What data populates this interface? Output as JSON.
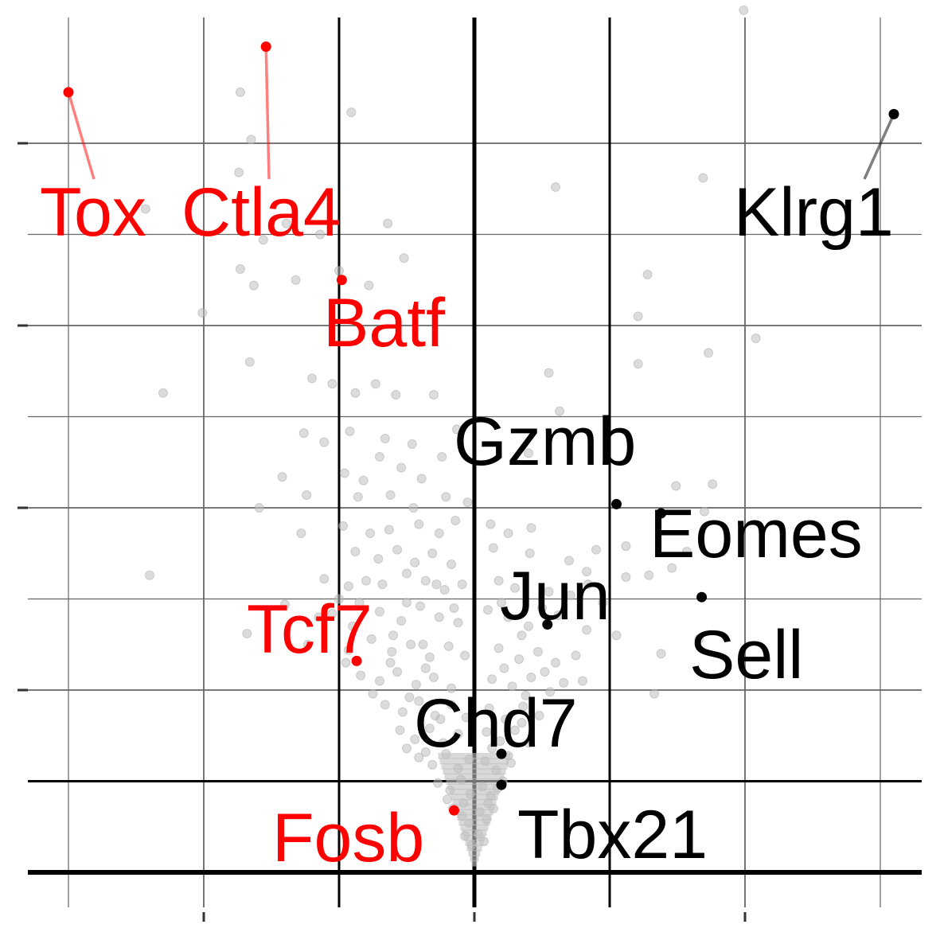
{
  "chart_data": {
    "type": "scatter",
    "title": "",
    "xlabel": "",
    "ylabel": "",
    "xlim": [
      -3.0,
      3.3
    ],
    "ylim": [
      -0.1,
      4.7
    ],
    "grid": true,
    "legend": "none",
    "x_ticks": [
      -2,
      0,
      2
    ],
    "y_ticks": [
      1,
      2,
      3,
      4
    ],
    "threshold_lines": {
      "x": [
        -1,
        1
      ],
      "y": 0.5
    },
    "colors": {
      "background_points": "#bfbfbf",
      "down": "#ff0000",
      "up": "#000000",
      "grid": "#666666",
      "axis": "#000000"
    },
    "highlighted": [
      {
        "gene": "Tox",
        "group": "down",
        "x": -3.0,
        "y": 4.28
      },
      {
        "gene": "Ctla4",
        "group": "down",
        "x": -1.54,
        "y": 4.53
      },
      {
        "gene": "Batf",
        "group": "down",
        "x": -0.98,
        "y": 3.25
      },
      {
        "gene": "Tcf7",
        "group": "down",
        "x": -0.87,
        "y": 1.16
      },
      {
        "gene": "Fosb",
        "group": "down",
        "x": -0.15,
        "y": 0.34
      },
      {
        "gene": "Klrg1",
        "group": "up",
        "x": 3.1,
        "y": 4.16
      },
      {
        "gene": "Gzmb",
        "group": "up",
        "x": 1.05,
        "y": 2.02
      },
      {
        "gene": "Eomes",
        "group": "up",
        "x": 1.38,
        "y": 1.97
      },
      {
        "gene": "Sell",
        "group": "up",
        "x": 1.68,
        "y": 1.51
      },
      {
        "gene": "Jun",
        "group": "up",
        "x": 0.54,
        "y": 1.36
      },
      {
        "gene": "Chd7",
        "group": "up",
        "x": 0.2,
        "y": 0.65
      },
      {
        "gene": "Tbx21",
        "group": "up",
        "x": 0.2,
        "y": 0.48
      }
    ],
    "background_points": [
      [
        1.99,
        4.73
      ],
      [
        -1.73,
        4.28
      ],
      [
        -0.91,
        4.17
      ],
      [
        -1.65,
        4.02
      ],
      [
        -1.74,
        3.84
      ],
      [
        1.69,
        3.81
      ],
      [
        0.6,
        3.76
      ],
      [
        -2.43,
        3.64
      ],
      [
        -1.39,
        3.56
      ],
      [
        -1.14,
        3.5
      ],
      [
        -1.56,
        3.47
      ],
      [
        -0.64,
        3.56
      ],
      [
        -0.52,
        3.37
      ],
      [
        -1.73,
        3.31
      ],
      [
        -1.63,
        3.22
      ],
      [
        -1.32,
        3.25
      ],
      [
        -1.0,
        3.3
      ],
      [
        -0.78,
        3.22
      ],
      [
        1.28,
        3.28
      ],
      [
        -2.01,
        3.07
      ],
      [
        1.21,
        3.05
      ],
      [
        1.73,
        2.85
      ],
      [
        2.08,
        2.93
      ],
      [
        -1.66,
        2.8
      ],
      [
        1.21,
        2.79
      ],
      [
        -2.3,
        2.63
      ],
      [
        -1.2,
        2.71
      ],
      [
        -1.05,
        2.68
      ],
      [
        -0.88,
        2.63
      ],
      [
        -0.73,
        2.68
      ],
      [
        -0.58,
        2.62
      ],
      [
        0.55,
        2.74
      ],
      [
        -0.3,
        2.62
      ],
      [
        0.63,
        2.53
      ],
      [
        -1.26,
        2.41
      ],
      [
        -1.11,
        2.36
      ],
      [
        -0.92,
        2.42
      ],
      [
        -0.66,
        2.38
      ],
      [
        -0.46,
        2.35
      ],
      [
        -0.13,
        2.43
      ],
      [
        -0.96,
        2.19
      ],
      [
        -0.82,
        2.15
      ],
      [
        -0.7,
        2.28
      ],
      [
        -0.54,
        2.22
      ],
      [
        -0.39,
        2.16
      ],
      [
        -0.24,
        2.28
      ],
      [
        0.4,
        2.3
      ],
      [
        1.49,
        2.12
      ],
      [
        1.76,
        2.13
      ],
      [
        1.7,
        1.98
      ],
      [
        -1.42,
        2.17
      ],
      [
        -1.24,
        2.07
      ],
      [
        -0.86,
        2.06
      ],
      [
        -0.62,
        2.07
      ],
      [
        -0.45,
        2.0
      ],
      [
        -0.21,
        2.06
      ],
      [
        -0.05,
        2.03
      ],
      [
        -1.59,
        2.0
      ],
      [
        -1.28,
        1.86
      ],
      [
        -0.97,
        1.9
      ],
      [
        -0.77,
        1.86
      ],
      [
        -0.63,
        1.88
      ],
      [
        -0.41,
        1.91
      ],
      [
        -0.26,
        1.86
      ],
      [
        -0.14,
        1.93
      ],
      [
        0.12,
        1.91
      ],
      [
        0.25,
        1.86
      ],
      [
        0.42,
        1.89
      ],
      [
        -0.88,
        1.76
      ],
      [
        -0.71,
        1.72
      ],
      [
        -0.57,
        1.77
      ],
      [
        -0.44,
        1.7
      ],
      [
        -0.31,
        1.75
      ],
      [
        -0.17,
        1.69
      ],
      [
        0.14,
        1.78
      ],
      [
        0.41,
        1.75
      ],
      [
        0.7,
        1.71
      ],
      [
        0.9,
        1.77
      ],
      [
        1.12,
        1.79
      ],
      [
        1.46,
        1.67
      ],
      [
        1.57,
        1.76
      ],
      [
        1.29,
        1.63
      ],
      [
        1.12,
        1.62
      ],
      [
        0.83,
        1.65
      ],
      [
        -2.4,
        1.63
      ],
      [
        -1.11,
        1.61
      ],
      [
        -0.93,
        1.57
      ],
      [
        -0.68,
        1.58
      ],
      [
        -0.5,
        1.64
      ],
      [
        -0.36,
        1.6
      ],
      [
        -0.22,
        1.55
      ],
      [
        -0.09,
        1.58
      ],
      [
        0.18,
        1.6
      ],
      [
        0.3,
        1.56
      ],
      [
        0.55,
        1.54
      ],
      [
        0.71,
        1.52
      ],
      [
        0.84,
        1.58
      ],
      [
        -1.4,
        1.47
      ],
      [
        -1.15,
        1.4
      ],
      [
        -0.85,
        1.48
      ],
      [
        -0.7,
        1.43
      ],
      [
        -0.54,
        1.38
      ],
      [
        -0.4,
        1.46
      ],
      [
        -0.26,
        1.4
      ],
      [
        -0.12,
        1.37
      ],
      [
        0.1,
        1.44
      ],
      [
        0.25,
        1.4
      ],
      [
        0.4,
        1.35
      ],
      [
        0.62,
        1.41
      ],
      [
        0.83,
        1.33
      ],
      [
        1.66,
        1.28
      ],
      [
        -1.68,
        1.31
      ],
      [
        -1.23,
        1.25
      ],
      [
        -0.93,
        1.22
      ],
      [
        -0.76,
        1.28
      ],
      [
        -0.61,
        1.21
      ],
      [
        -0.47,
        1.25
      ],
      [
        -0.33,
        1.18
      ],
      [
        -0.19,
        1.24
      ],
      [
        -0.07,
        1.19
      ],
      [
        0.18,
        1.23
      ],
      [
        0.33,
        1.17
      ],
      [
        0.47,
        1.21
      ],
      [
        0.6,
        1.15
      ],
      [
        0.75,
        1.19
      ],
      [
        1.38,
        1.2
      ],
      [
        -0.84,
        1.08
      ],
      [
        -0.7,
        1.05
      ],
      [
        -0.57,
        1.1
      ],
      [
        -0.43,
        1.03
      ],
      [
        -0.3,
        1.07
      ],
      [
        -0.17,
        1.01
      ],
      [
        0.13,
        1.06
      ],
      [
        0.28,
        1.02
      ],
      [
        0.42,
        1.07
      ],
      [
        0.56,
        0.99
      ],
      [
        0.66,
        1.04
      ],
      [
        1.33,
        0.98
      ],
      [
        -0.66,
        0.92
      ],
      [
        -0.53,
        0.88
      ],
      [
        -0.41,
        0.94
      ],
      [
        -0.29,
        0.86
      ],
      [
        -0.17,
        0.92
      ],
      [
        -0.06,
        0.85
      ],
      [
        0.11,
        0.9
      ],
      [
        0.23,
        0.84
      ],
      [
        0.36,
        0.91
      ],
      [
        0.48,
        0.86
      ],
      [
        -0.55,
        0.78
      ],
      [
        -0.44,
        0.73
      ],
      [
        -0.33,
        0.79
      ],
      [
        -0.23,
        0.71
      ],
      [
        -0.12,
        0.76
      ],
      [
        0.09,
        0.77
      ],
      [
        0.19,
        0.72
      ],
      [
        0.3,
        0.78
      ],
      [
        0.4,
        0.71
      ],
      [
        -0.41,
        0.63
      ],
      [
        -0.31,
        0.59
      ],
      [
        -0.21,
        0.65
      ],
      [
        -0.12,
        0.57
      ],
      [
        -0.04,
        0.62
      ],
      [
        0.08,
        0.61
      ],
      [
        0.16,
        0.56
      ],
      [
        0.27,
        0.6
      ],
      [
        -0.27,
        0.49
      ],
      [
        -0.18,
        0.45
      ],
      [
        -0.1,
        0.51
      ],
      [
        -0.03,
        0.43
      ],
      [
        0.06,
        0.47
      ],
      [
        0.12,
        0.42
      ],
      [
        0.21,
        0.5
      ],
      [
        -0.16,
        0.35
      ],
      [
        -0.09,
        0.31
      ],
      [
        -0.04,
        0.27
      ],
      [
        0.04,
        0.33
      ],
      [
        0.09,
        0.29
      ],
      [
        0.14,
        0.35
      ],
      [
        -0.07,
        0.2
      ],
      [
        -0.02,
        0.15
      ],
      [
        0.03,
        0.21
      ],
      [
        0.07,
        0.17
      ],
      [
        -0.6,
        1.3
      ],
      [
        -0.5,
        1.48
      ],
      [
        -0.38,
        1.25
      ],
      [
        -0.28,
        1.58
      ],
      [
        -0.15,
        1.45
      ],
      [
        0.2,
        1.48
      ],
      [
        0.35,
        1.3
      ],
      [
        0.5,
        1.45
      ],
      [
        -0.75,
        0.98
      ],
      [
        -0.62,
        1.15
      ],
      [
        -0.48,
        0.96
      ],
      [
        -0.36,
        1.12
      ],
      [
        0.22,
        1.12
      ],
      [
        0.38,
        0.97
      ],
      [
        0.52,
        1.1
      ],
      [
        -0.5,
        0.68
      ],
      [
        -0.36,
        0.66
      ],
      [
        -0.25,
        0.84
      ],
      [
        0.13,
        0.68
      ],
      [
        0.25,
        0.64
      ],
      [
        0.35,
        0.82
      ],
      [
        -0.2,
        0.4
      ],
      [
        -0.08,
        0.38
      ],
      [
        0.1,
        0.38
      ],
      [
        0.17,
        0.46
      ],
      [
        -0.9,
        1.35
      ],
      [
        -0.8,
        1.6
      ],
      [
        -1.0,
        1.5
      ],
      [
        0.95,
        1.48
      ],
      [
        1.05,
        1.3
      ],
      [
        0.8,
        1.05
      ],
      [
        -0.95,
        1.15
      ],
      [
        -1.05,
        1.42
      ]
    ]
  }
}
